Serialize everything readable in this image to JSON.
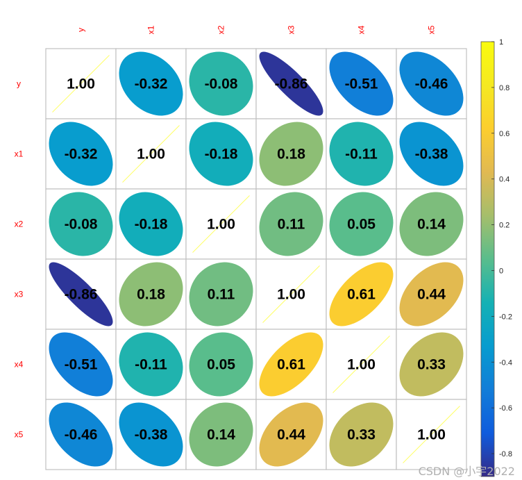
{
  "chart_data": {
    "type": "heatmap",
    "title": "",
    "variables": [
      "y",
      "x1",
      "x2",
      "x3",
      "x4",
      "x5"
    ],
    "matrix": [
      [
        1.0,
        -0.32,
        -0.08,
        -0.86,
        -0.51,
        -0.46
      ],
      [
        -0.32,
        1.0,
        -0.18,
        0.18,
        -0.11,
        -0.38
      ],
      [
        -0.08,
        -0.18,
        1.0,
        0.11,
        0.05,
        0.14
      ],
      [
        -0.86,
        0.18,
        0.11,
        1.0,
        0.61,
        0.44
      ],
      [
        -0.51,
        -0.11,
        0.05,
        0.61,
        1.0,
        0.33
      ],
      [
        -0.46,
        -0.38,
        0.14,
        0.44,
        0.33,
        1.0
      ]
    ],
    "diagonal_style": "line",
    "off_diagonal_style": "ellipse",
    "colorbar": {
      "range": [
        -0.9,
        1
      ],
      "ticks": [
        1,
        0.8,
        0.6,
        0.4,
        0.2,
        0,
        -0.2,
        -0.4,
        -0.6,
        -0.8
      ],
      "tick_labels": [
        "1",
        "0.8",
        "0.6",
        "0.4",
        "0.2",
        "0",
        "-0.2",
        "-0.4",
        "-0.6",
        "-0.8"
      ],
      "colormap": "parula",
      "placement": "right"
    },
    "label_color": "#ff0000",
    "diagonal_line_color": "#ffff66",
    "grid_color": "#c0c0c0"
  },
  "watermark": "CSDN @小宇2022"
}
